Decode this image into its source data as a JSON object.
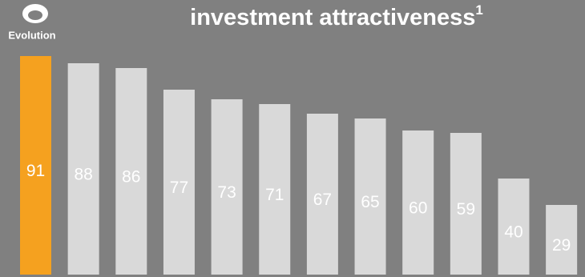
{
  "chart_data": {
    "type": "bar",
    "title": "investment attractiveness",
    "title_superscript": "1",
    "logo_text": "Evolution",
    "values": [
      91,
      88,
      86,
      77,
      73,
      71,
      67,
      65,
      60,
      59,
      40,
      29
    ],
    "colors": [
      "#f5a11f",
      "#d9d9d9",
      "#d9d9d9",
      "#d9d9d9",
      "#d9d9d9",
      "#d9d9d9",
      "#d9d9d9",
      "#d9d9d9",
      "#d9d9d9",
      "#d9d9d9",
      "#d9d9d9",
      "#d9d9d9"
    ],
    "ylim": [
      0,
      100
    ]
  }
}
